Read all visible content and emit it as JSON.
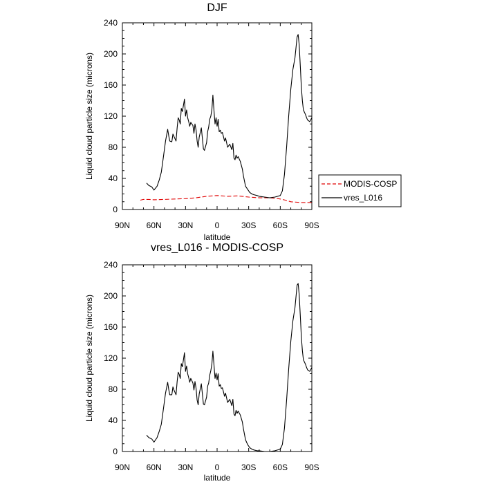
{
  "chart_data": [
    {
      "type": "line",
      "title": "DJF",
      "xlabel": "latitude",
      "ylabel": "Liquid cloud particle size (microns)",
      "xlim": [
        90,
        -90
      ],
      "ylim": [
        0,
        240
      ],
      "x_tick_values": [
        90,
        60,
        30,
        0,
        -30,
        -60,
        -90
      ],
      "x_tick_labels": [
        "90N",
        "60N",
        "30N",
        "0",
        "30S",
        "60S",
        "90S"
      ],
      "y_ticks": [
        0,
        40,
        80,
        120,
        160,
        200,
        240
      ],
      "legend": [
        "MODIS-COSP",
        "vres_L016"
      ],
      "series": [
        {
          "name": "MODIS-COSP",
          "color": "#e00000",
          "style": "dashed",
          "x": [
            73,
            70,
            65,
            60,
            50,
            40,
            30,
            20,
            10,
            0,
            -10,
            -20,
            -30,
            -40,
            -50,
            -55,
            -60,
            -65,
            -70,
            -80,
            -90
          ],
          "y": [
            12,
            13,
            13,
            12.5,
            13,
            13.5,
            14,
            15,
            17,
            18,
            17,
            17.5,
            16,
            15,
            15,
            14.5,
            13.5,
            12,
            10,
            9,
            9
          ]
        },
        {
          "name": "vres_L016",
          "color": "#000000",
          "style": "solid",
          "x": [
            67,
            65,
            62,
            60,
            57,
            55,
            53,
            51,
            49,
            47,
            46,
            45,
            43,
            42,
            41,
            39,
            38,
            37,
            36,
            35,
            34,
            33,
            31,
            30,
            29,
            28,
            27,
            26,
            25,
            24,
            23,
            22,
            21,
            20,
            19,
            18,
            17,
            15,
            13,
            12,
            10,
            9,
            8,
            7,
            6,
            5,
            4,
            3,
            2,
            1,
            0,
            -1,
            -2,
            -3,
            -4,
            -5,
            -6,
            -7,
            -8,
            -9,
            -10,
            -12,
            -14,
            -15,
            -16,
            -17,
            -18,
            -19,
            -20,
            -22,
            -24,
            -25,
            -27,
            -29,
            -31,
            -33,
            -35,
            -38,
            -40,
            -45,
            -50,
            -55,
            -60,
            -62,
            -64,
            -66,
            -68,
            -70,
            -72,
            -74,
            -76,
            -77,
            -78,
            -79,
            -80,
            -81,
            -82,
            -83,
            -84,
            -85,
            -86,
            -88,
            -90
          ],
          "y": [
            34,
            31,
            29,
            25,
            30,
            38,
            48,
            68,
            88,
            103,
            95,
            88,
            87,
            97,
            94,
            88,
            105,
            118,
            115,
            110,
            130,
            126,
            142,
            120,
            128,
            118,
            113,
            107,
            112,
            110,
            108,
            98,
            110,
            102,
            88,
            80,
            93,
            105,
            78,
            76,
            86,
            100,
            106,
            116,
            120,
            128,
            147,
            128,
            110,
            118,
            107,
            116,
            100,
            102,
            98,
            99,
            94,
            88,
            92,
            86,
            80,
            84,
            77,
            85,
            66,
            64,
            70,
            66,
            68,
            62,
            52,
            43,
            30,
            26,
            22,
            20,
            19,
            18,
            17,
            16,
            15,
            16,
            18,
            24,
            45,
            80,
            120,
            155,
            180,
            195,
            222,
            225,
            212,
            185,
            158,
            140,
            128,
            125,
            122,
            118,
            115,
            113,
            118
          ]
        }
      ]
    },
    {
      "type": "line",
      "title": "vres_L016 - MODIS-COSP",
      "xlabel": "latitude",
      "ylabel": "Liquid cloud particle size (microns)",
      "xlim": [
        90,
        -90
      ],
      "ylim": [
        0,
        240
      ],
      "x_tick_values": [
        90,
        60,
        30,
        0,
        -30,
        -60,
        -90
      ],
      "x_tick_labels": [
        "90N",
        "60N",
        "30N",
        "0",
        "30S",
        "60S",
        "90S"
      ],
      "y_ticks": [
        0,
        40,
        80,
        120,
        160,
        200,
        240
      ],
      "series": [
        {
          "name": "vres_L016 - MODIS-COSP",
          "color": "#000000",
          "style": "solid",
          "x": [
            67,
            65,
            62,
            60,
            57,
            55,
            53,
            51,
            49,
            47,
            46,
            45,
            43,
            42,
            41,
            39,
            38,
            37,
            36,
            35,
            34,
            33,
            31,
            30,
            29,
            28,
            27,
            26,
            25,
            24,
            23,
            22,
            21,
            20,
            19,
            18,
            17,
            15,
            13,
            12,
            10,
            9,
            8,
            7,
            6,
            5,
            4,
            3,
            2,
            1,
            0,
            -1,
            -2,
            -3,
            -4,
            -5,
            -6,
            -7,
            -8,
            -9,
            -10,
            -12,
            -14,
            -15,
            -16,
            -17,
            -18,
            -19,
            -20,
            -22,
            -24,
            -25,
            -27,
            -29,
            -31,
            -33,
            -35,
            -38,
            -40,
            -45,
            -50,
            -55,
            -60,
            -62,
            -64,
            -66,
            -68,
            -70,
            -72,
            -74,
            -76,
            -77,
            -78,
            -79,
            -80,
            -81,
            -82,
            -83,
            -84,
            -85,
            -86,
            -88,
            -90
          ],
          "y": [
            21,
            18,
            16,
            12,
            18,
            26,
            35,
            55,
            75,
            89,
            80,
            73,
            73,
            83,
            79,
            73,
            90,
            102,
            99,
            94,
            113,
            109,
            127,
            103,
            110,
            100,
            95,
            89,
            94,
            91,
            88,
            79,
            90,
            81,
            66,
            60,
            74,
            87,
            61,
            60,
            70,
            84,
            88,
            98,
            104,
            112,
            129,
            112,
            94,
            101,
            92,
            100,
            84,
            86,
            81,
            82,
            77,
            71,
            75,
            69,
            63,
            67,
            59,
            67,
            48,
            46,
            53,
            49,
            52,
            47,
            38,
            29,
            15,
            9,
            5,
            3,
            2,
            1,
            1,
            0,
            0,
            1,
            3,
            9,
            30,
            66,
            106,
            142,
            168,
            185,
            214,
            216,
            202,
            175,
            148,
            130,
            118,
            115,
            112,
            108,
            105,
            103,
            108
          ]
        }
      ]
    }
  ]
}
